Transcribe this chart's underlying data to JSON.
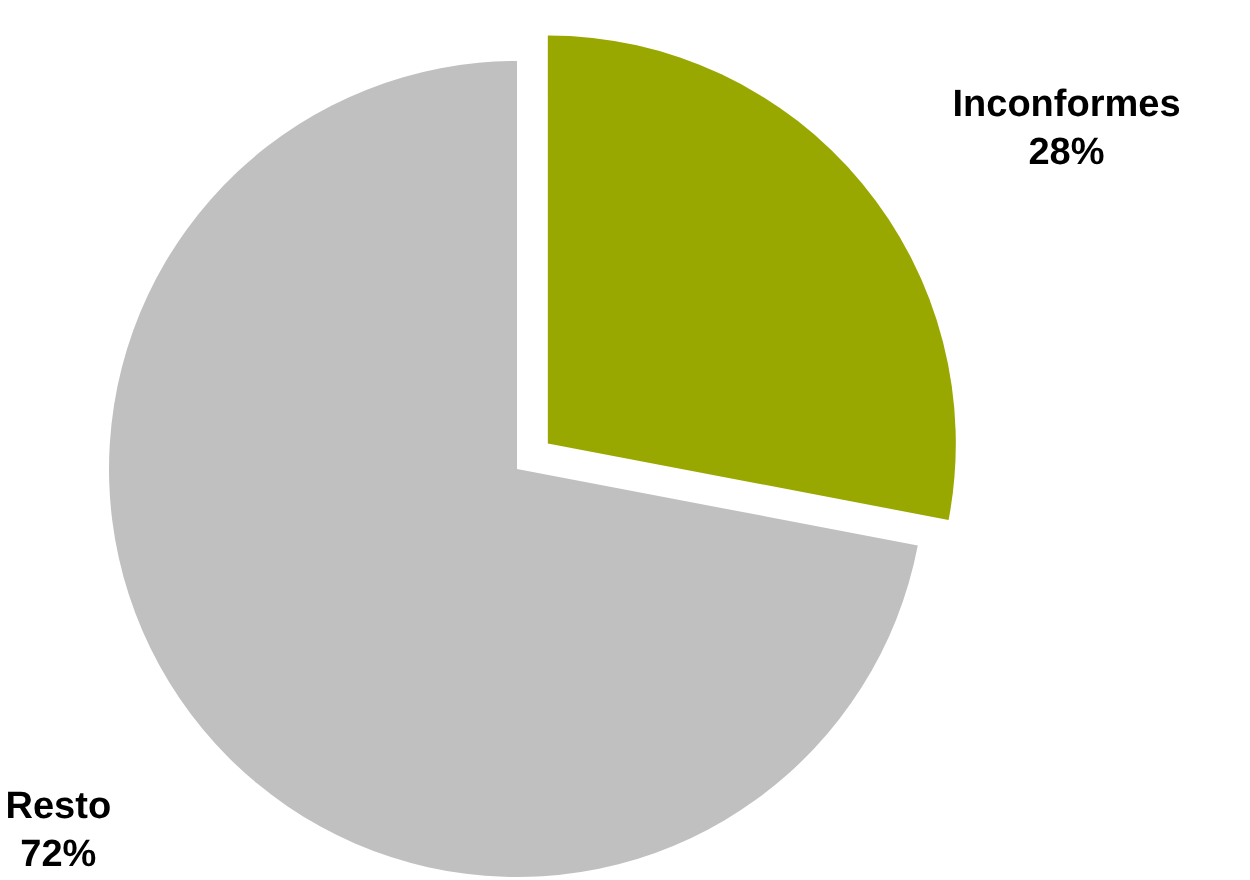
{
  "chart_data": {
    "type": "pie",
    "categories": [
      "Inconformes",
      "Resto"
    ],
    "values": [
      28,
      72
    ],
    "colors": [
      "#99a800",
      "#c0c0c0"
    ],
    "value_labels": [
      "28%",
      "72%"
    ]
  }
}
